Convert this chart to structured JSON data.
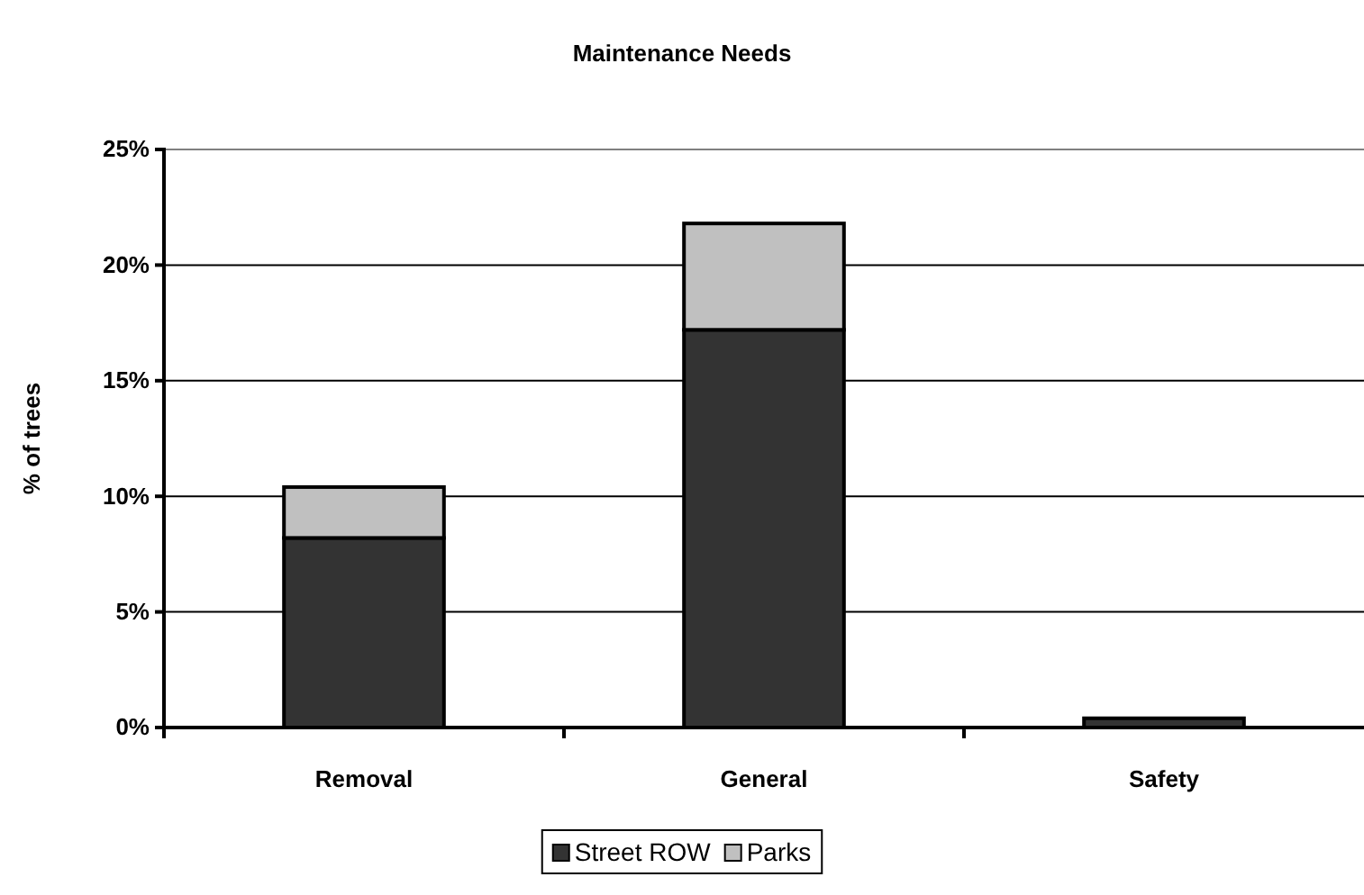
{
  "chart_data": {
    "type": "bar",
    "title": "Maintenance Needs",
    "ylabel": "% of trees",
    "categories": [
      "Removal",
      "General",
      "Safety"
    ],
    "stacked": true,
    "series": [
      {
        "name": "Street ROW",
        "color": "#333333",
        "values": [
          8.2,
          17.2,
          0.4
        ]
      },
      {
        "name": "Parks",
        "color": "#c0c0c0",
        "values": [
          2.2,
          4.6,
          0
        ]
      }
    ],
    "ylim": [
      0,
      25
    ],
    "yticks": [
      {
        "value": 0,
        "label": "0%"
      },
      {
        "value": 5,
        "label": "5%"
      },
      {
        "value": 10,
        "label": "10%"
      },
      {
        "value": 15,
        "label": "15%"
      },
      {
        "value": 20,
        "label": "20%"
      },
      {
        "value": 25,
        "label": "25%"
      }
    ],
    "grid": "y",
    "legend": "bottom"
  }
}
